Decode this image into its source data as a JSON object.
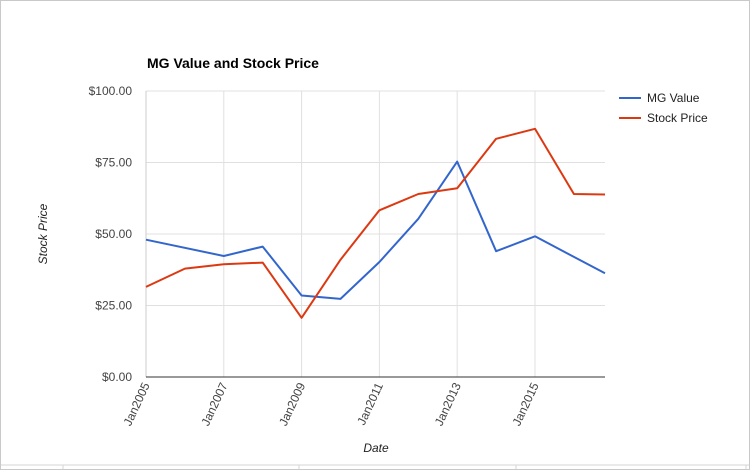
{
  "chart_data": {
    "type": "line",
    "title": "MG Value and Stock Price",
    "xlabel": "Date",
    "ylabel": "Stock Price",
    "x_ticks": [
      "Jan2005",
      "Jan2007",
      "Jan2009",
      "Jan2011",
      "Jan2013",
      "Jan2015"
    ],
    "x_range": [
      2005,
      2016.8
    ],
    "y_ticks": [
      "$0.00",
      "$25.00",
      "$50.00",
      "$75.00",
      "$100.00"
    ],
    "ylim": [
      0,
      100
    ],
    "grid": true,
    "legend_position": "right",
    "series": [
      {
        "name": "MG Value",
        "color": "#3366cc",
        "x": [
          2005,
          2007,
          2008,
          2009,
          2010,
          2011,
          2012,
          2013,
          2014,
          2015,
          2016,
          2016.8
        ],
        "y": [
          48,
          42.3,
          45.6,
          28.5,
          27.3,
          40.2,
          55.3,
          75.3,
          44,
          49.2,
          42,
          36.3
        ]
      },
      {
        "name": "Stock Price",
        "color": "#dc3912",
        "x": [
          2005,
          2006,
          2007,
          2008,
          2009,
          2010,
          2011,
          2012,
          2013,
          2014,
          2015,
          2016,
          2016.8
        ],
        "y": [
          31.5,
          37.9,
          39.4,
          40,
          20.7,
          41,
          58.3,
          64,
          66,
          83.3,
          86.8,
          64,
          63.8
        ]
      }
    ]
  }
}
